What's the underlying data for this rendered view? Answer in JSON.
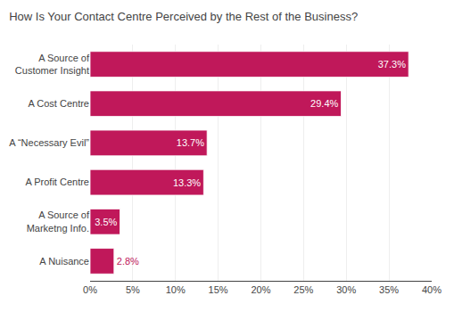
{
  "chart_data": {
    "type": "bar",
    "orientation": "horizontal",
    "title": "How Is Your Contact Centre Perceived by the Rest of the Business?",
    "categories": [
      "A Nuisance",
      "A Source of\nMarketng Info.",
      "A Profit Centre",
      "A “Necessary Evil”",
      "A Cost Centre",
      "A Source of\nCustomer Insight"
    ],
    "values": [
      2.8,
      3.5,
      13.3,
      13.7,
      29.4,
      37.3
    ],
    "value_labels": [
      "2.8%",
      "3.5%",
      "13.3%",
      "13.7%",
      "29.4%",
      "37.3%"
    ],
    "data_labels": true,
    "color": "#c0185a",
    "xlim": [
      0,
      40
    ],
    "xticks": [
      {
        "value": 0,
        "label": "0%"
      },
      {
        "value": 5,
        "label": "5%"
      },
      {
        "value": 10,
        "label": "10%"
      },
      {
        "value": 15,
        "label": "15%"
      },
      {
        "value": 20,
        "label": "20%"
      },
      {
        "value": 25,
        "label": "25%"
      },
      {
        "value": 30,
        "label": "30%"
      },
      {
        "value": 35,
        "label": "35%"
      },
      {
        "value": 40,
        "label": "40%"
      }
    ],
    "grid": true
  }
}
